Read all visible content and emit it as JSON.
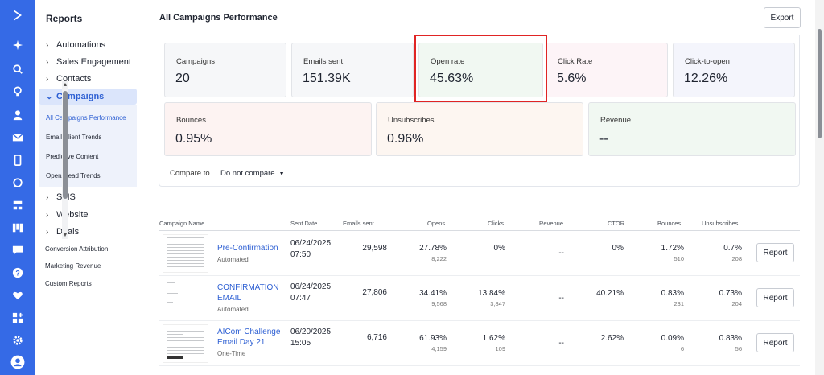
{
  "colors": {
    "accent": "#356ae6",
    "link": "#2d5fd3",
    "highlight": "#e02424"
  },
  "rail_icons": [
    "logo-icon",
    "sparkle-icon",
    "search-icon",
    "lightbulb-icon",
    "contacts-icon",
    "email-icon",
    "mobile-icon",
    "whatsapp-icon",
    "automations-icon",
    "pipeline-icon",
    "conversations-icon",
    "help-icon",
    "heart-icon",
    "apps-icon",
    "settings-icon",
    "avatar-icon"
  ],
  "sidebar": {
    "title": "Reports",
    "items": [
      {
        "label": "Automations"
      },
      {
        "label": "Sales Engagement"
      },
      {
        "label": "Contacts"
      },
      {
        "label": "Campaigns"
      }
    ],
    "campaigns_sub": [
      {
        "label": "All Campaigns Performance"
      },
      {
        "label": "Email Client Trends"
      },
      {
        "label": "Predictive Content"
      },
      {
        "label": "Open/Read Trends"
      }
    ],
    "more_items": [
      {
        "label": "SMS"
      },
      {
        "label": "Website"
      },
      {
        "label": "Deals"
      }
    ],
    "plain_items": [
      {
        "label": "Conversion Attribution"
      },
      {
        "label": "Marketing Revenue"
      },
      {
        "label": "Custom Reports"
      }
    ]
  },
  "header": {
    "title": "All Campaigns Performance",
    "export_label": "Export"
  },
  "metrics": [
    {
      "label": "Campaigns",
      "value": "20"
    },
    {
      "label": "Emails sent",
      "value": "151.39K"
    },
    {
      "label": "Open rate",
      "value": "45.63%"
    },
    {
      "label": "Click Rate",
      "value": "5.6%"
    },
    {
      "label": "Click-to-open",
      "value": "12.26%"
    },
    {
      "label": "Bounces",
      "value": "0.95%"
    },
    {
      "label": "Unsubscribes",
      "value": "0.96%"
    },
    {
      "label": "Revenue",
      "value": "--"
    }
  ],
  "compare": {
    "label": "Compare to",
    "value": "Do not compare"
  },
  "table": {
    "headers": [
      "Campaign Name",
      "Sent Date",
      "Emails sent",
      "Opens",
      "Clicks",
      "Revenue",
      "CTOR",
      "Bounces",
      "Unsubscribes"
    ],
    "rows": [
      {
        "name": "Pre-Confirmation",
        "type": "Automated",
        "date": "06/24/2025",
        "time": "07:50",
        "sent": "29,598",
        "opens": "27.78%",
        "opens_n": "8,222",
        "clicks": "0%",
        "clicks_n": "",
        "revenue": "--",
        "ctor": "0%",
        "bounces": "1.72%",
        "bounces_n": "510",
        "unsubs": "0.7%",
        "unsubs_n": "208",
        "report": "Report"
      },
      {
        "name": "CONFIRMATION EMAIL",
        "type": "Automated",
        "date": "06/24/2025",
        "time": "07:47",
        "sent": "27,806",
        "opens": "34.41%",
        "opens_n": "9,568",
        "clicks": "13.84%",
        "clicks_n": "3,847",
        "revenue": "--",
        "ctor": "40.21%",
        "bounces": "0.83%",
        "bounces_n": "231",
        "unsubs": "0.73%",
        "unsubs_n": "204",
        "report": "Report"
      },
      {
        "name": "AICom Challenge Email Day 21",
        "type": "One-Time",
        "date": "06/20/2025",
        "time": "15:05",
        "sent": "6,716",
        "opens": "61.93%",
        "opens_n": "4,159",
        "clicks": "1.62%",
        "clicks_n": "109",
        "revenue": "--",
        "ctor": "2.62%",
        "bounces": "0.09%",
        "bounces_n": "6",
        "unsubs": "0.83%",
        "unsubs_n": "56",
        "report": "Report"
      }
    ]
  }
}
